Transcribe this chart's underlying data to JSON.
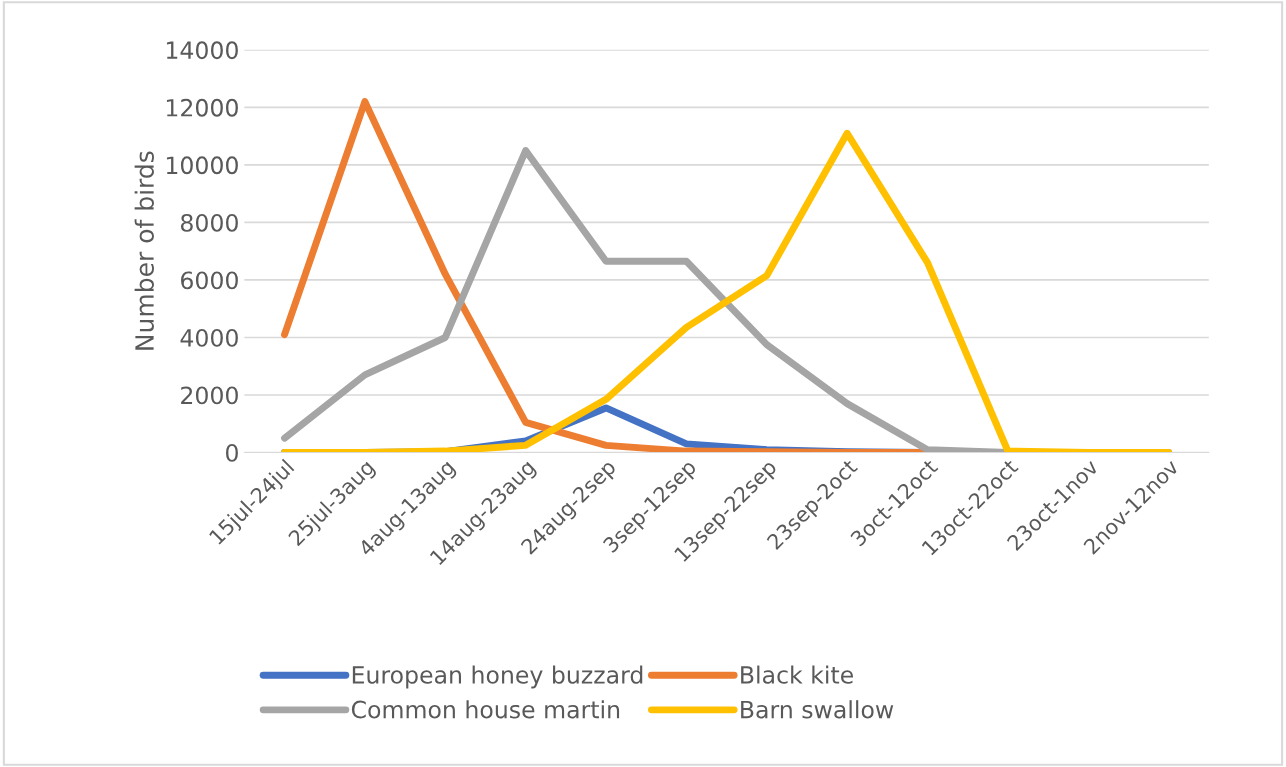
{
  "chart_data": {
    "type": "line",
    "ylabel": "Number of birds",
    "categories": [
      "15jul-24jul",
      "25jul-3aug",
      "4aug-13aug",
      "14aug-23aug",
      "24aug-2sep",
      "3sep-12sep",
      "13sep-22sep",
      "23sep-2oct",
      "3oct-12oct",
      "13oct-22oct",
      "23oct-1nov",
      "2nov-12nov"
    ],
    "series": [
      {
        "name": "European honey buzzard",
        "color": "#4472c4",
        "values": [
          0,
          0,
          30,
          400,
          1550,
          300,
          100,
          30,
          0,
          0,
          null,
          null
        ]
      },
      {
        "name": "Black kite",
        "color": "#ed7d31",
        "values": [
          4100,
          12200,
          6200,
          1050,
          250,
          50,
          30,
          0,
          0,
          0,
          null,
          null
        ]
      },
      {
        "name": "Common house martin",
        "color": "#a5a5a5",
        "values": [
          500,
          2700,
          4000,
          10500,
          6650,
          6650,
          3750,
          1700,
          100,
          0,
          0,
          0
        ]
      },
      {
        "name": "Barn swallow",
        "color": "#ffc000",
        "values": [
          0,
          0,
          50,
          250,
          1850,
          4350,
          6150,
          11100,
          6600,
          50,
          0,
          0
        ]
      }
    ],
    "ylim": [
      0,
      14000
    ],
    "yticks": [
      0,
      2000,
      4000,
      6000,
      8000,
      10000,
      12000,
      14000
    ],
    "grid": "y",
    "legend": "bottom",
    "marker": "none",
    "line_style": "solid"
  }
}
